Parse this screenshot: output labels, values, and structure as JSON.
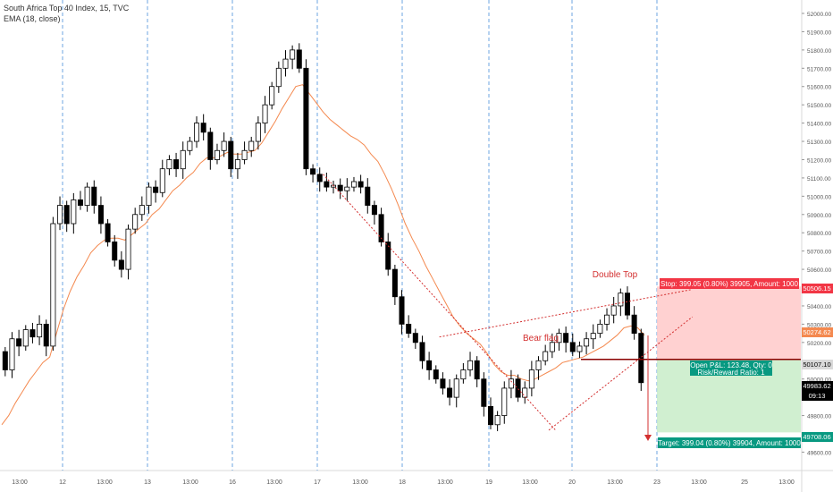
{
  "header": {
    "symbol_line": "South Africa Top 40 Index, 15, TVC",
    "indicator_line": "EMA (18, close)"
  },
  "colors": {
    "up_candle": "#ffffff",
    "down_candle": "#000000",
    "ema": "#f4894f",
    "stop_zone": "#ffc9c9",
    "target_zone": "#c8ecc8",
    "stop_tag": "#f23645",
    "target_tag": "#089981",
    "annotation": "#d32f2f",
    "session_line": "#4a90d9"
  },
  "chart_data": {
    "type": "candlestick",
    "ylim": [
      49500,
      52020
    ],
    "y_ticks": [
      49600,
      49700,
      49800,
      49900,
      50000,
      50100,
      50200,
      50300,
      50400,
      50500,
      50600,
      50700,
      50800,
      50900,
      51000,
      51100,
      51200,
      51300,
      51400,
      51500,
      51600,
      51700,
      51800,
      51900,
      52000
    ],
    "y_tick_labels": [
      "49600.00",
      "49700.00",
      "49800.00",
      "49900.00",
      "50000.00",
      "50100.00",
      "50200.00",
      "50300.00",
      "50400.00",
      "50500.00",
      "50600.00",
      "50700.00",
      "50800.00",
      "50900.00",
      "51000.00",
      "51100.00",
      "51200.00",
      "51300.00",
      "51400.00",
      "51500.00",
      "51600.00",
      "51700.00",
      "51800.00",
      "51900.00",
      "52000.00"
    ],
    "x_labels": [
      "13:00",
      "12",
      "13:00",
      "13",
      "13:00",
      "16",
      "13:00",
      "17",
      "13:00",
      "18",
      "13:00",
      "19",
      "13:00",
      "20",
      "13:00",
      "23",
      "13:00",
      "25",
      "13:00"
    ],
    "price_path": [
      50150,
      50050,
      50220,
      50180,
      50270,
      50230,
      50300,
      50180,
      50850,
      50950,
      50850,
      50980,
      50950,
      51050,
      50950,
      50850,
      50750,
      50650,
      50600,
      50820,
      50900,
      50950,
      51050,
      51020,
      51150,
      51200,
      51150,
      51250,
      51300,
      51400,
      51350,
      51200,
      51250,
      51300,
      51150,
      51200,
      51250,
      51300,
      51400,
      51500,
      51600,
      51700,
      51750,
      51800,
      51700,
      51150,
      51120,
      51080,
      51050,
      51060,
      51030,
      51050,
      51080,
      51050,
      50950,
      50900,
      50750,
      50600,
      50450,
      50300,
      50250,
      50200,
      50100,
      50050,
      50000,
      49950,
      49900,
      50000,
      50050,
      50100,
      50000,
      49850,
      49750,
      49800,
      49950,
      50000,
      49900,
      49950,
      50050,
      50100,
      50150,
      50200,
      50250,
      50200,
      50150,
      50180,
      50220,
      50250,
      50300,
      50350,
      50400,
      50470,
      50350,
      50250,
      49980
    ],
    "ema_path": [
      49750,
      49800,
      49870,
      49930,
      49990,
      50040,
      50090,
      50120,
      50250,
      50380,
      50480,
      50560,
      50620,
      50690,
      50730,
      50760,
      50770,
      50770,
      50760,
      50790,
      50820,
      50850,
      50900,
      50930,
      50980,
      51030,
      51060,
      51100,
      51130,
      51180,
      51210,
      51210,
      51220,
      51240,
      51230,
      51230,
      51240,
      51250,
      51290,
      51350,
      51410,
      51480,
      51540,
      51600,
      51610,
      51560,
      51510,
      51460,
      51420,
      51390,
      51360,
      51330,
      51310,
      51280,
      51230,
      51190,
      51120,
      51040,
      50950,
      50850,
      50770,
      50700,
      50620,
      50550,
      50480,
      50410,
      50340,
      50290,
      50250,
      50220,
      50190,
      50140,
      50080,
      50040,
      50020,
      50020,
      50000,
      49990,
      50000,
      50020,
      50040,
      50060,
      50090,
      50100,
      50110,
      50120,
      50140,
      50160,
      50180,
      50210,
      50240,
      50280,
      50290,
      50280,
      50240
    ],
    "levels": {
      "stop": 50506.15,
      "ema_value": 50274.62,
      "entry": 50107.1,
      "last": 49983.62,
      "target": 49708.06
    },
    "price_tags": {
      "stop": "50506.15",
      "ema": "50274.62",
      "entry": "50107.10",
      "last": "49983.62",
      "countdown": "09:13",
      "target": "49708.06"
    },
    "annotations": {
      "double_top": "Double Top",
      "bear_flag": "Bear flag"
    },
    "position_labels": {
      "stop": "Stop: 399.05 (0.80%) 39905, Amount: 1000",
      "pnl": "Open P&L: 123.48, Qty: 0",
      "risk_reward": "Risk/Reward Ratio: 1",
      "target": "Target: 399.04 (0.80%) 39904, Amount: 1000"
    },
    "trend_lines": [
      {
        "from": [
          47,
          51120
        ],
        "to": [
          80,
          49720
        ]
      },
      {
        "from": [
          80,
          49720
        ],
        "to": [
          100,
          50340
        ]
      },
      {
        "from": [
          64,
          50230
        ],
        "to": [
          100,
          50490
        ]
      }
    ]
  }
}
